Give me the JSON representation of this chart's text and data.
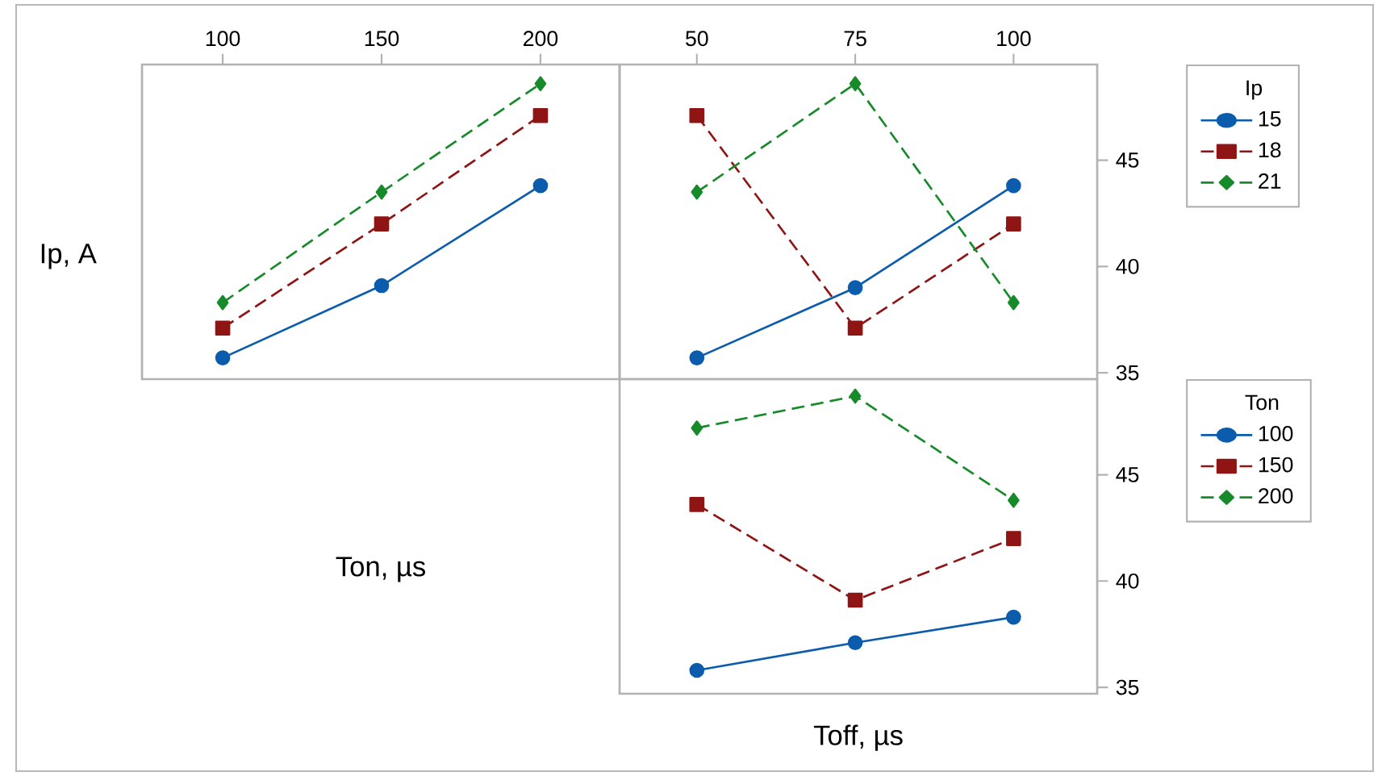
{
  "chart_data": [
    {
      "type": "line",
      "ylabel": "Ip, A",
      "xlabel": "Ton, µs",
      "x": [
        100,
        150,
        200
      ],
      "xlim": [
        74.6,
        224.9
      ],
      "xticks": [
        100,
        150,
        200
      ],
      "ylim": [
        34.7,
        49.5
      ],
      "yticks": [
        35,
        40,
        45
      ],
      "tick_labels": "x",
      "series": [
        {
          "color": "#0b5cad",
          "values": [
            35.7,
            39.1,
            43.8
          ],
          "marker": "circle",
          "line_style": "solid"
        },
        {
          "color": "#8f1414",
          "values": [
            37.1,
            42.0,
            47.1
          ],
          "marker": "square",
          "line_style": "dashed"
        },
        {
          "color": "#178a2a",
          "values": [
            38.3,
            43.5,
            48.6
          ],
          "marker": "diamond",
          "line_style": "dashed"
        }
      ]
    },
    {
      "type": "line",
      "x": [
        50,
        75,
        100
      ],
      "xlim": [
        37.8,
        113.2
      ],
      "xticks": [
        50,
        75,
        100
      ],
      "ylim": [
        34.7,
        49.5
      ],
      "yticks": [
        35,
        40,
        45
      ],
      "legend": "right",
      "legend_title": "Ip",
      "series": [
        {
          "name": "15",
          "color": "#0b5cad",
          "values": [
            35.7,
            39.0,
            43.8
          ],
          "marker": "circle",
          "line_style": "solid"
        },
        {
          "name": "18",
          "color": "#8f1414",
          "values": [
            47.1,
            37.1,
            42.0
          ],
          "marker": "square",
          "line_style": "dashed"
        },
        {
          "name": "21",
          "color": "#178a2a",
          "values": [
            43.5,
            48.6,
            38.3
          ],
          "marker": "diamond",
          "line_style": "dashed"
        }
      ]
    },
    {
      "type": "line",
      "xlabel": "Toff, µs",
      "x": [
        50,
        75,
        100
      ],
      "xlim": [
        37.8,
        113.2
      ],
      "xticks": [
        50,
        75,
        100
      ],
      "ylim": [
        34.7,
        49.5
      ],
      "yticks": [
        35,
        40,
        45
      ],
      "tick_labels": "y",
      "legend": "right",
      "legend_title": "Ton",
      "series": [
        {
          "name": "100",
          "color": "#0b5cad",
          "values": [
            35.8,
            37.1,
            38.3
          ],
          "marker": "circle",
          "line_style": "solid"
        },
        {
          "name": "150",
          "color": "#8f1414",
          "values": [
            43.6,
            39.1,
            42.0
          ],
          "marker": "square",
          "line_style": "dashed"
        },
        {
          "name": "200",
          "color": "#178a2a",
          "values": [
            47.2,
            48.7,
            43.8
          ],
          "marker": "diamond",
          "line_style": "dashed"
        }
      ]
    }
  ]
}
